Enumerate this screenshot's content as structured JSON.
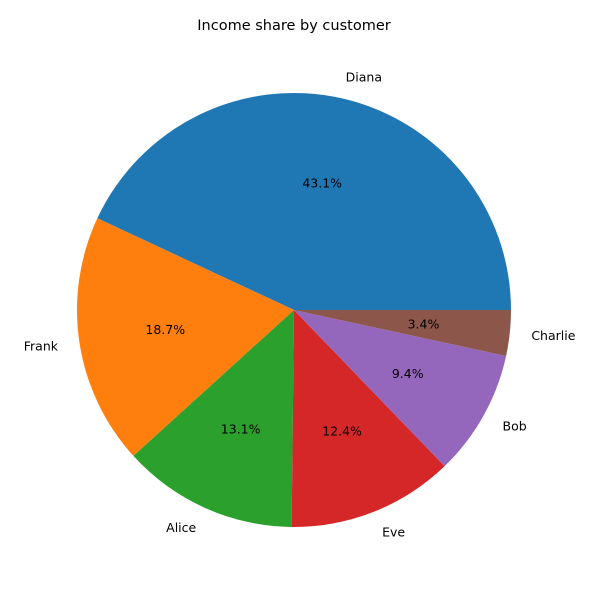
{
  "chart_data": {
    "type": "pie",
    "title": "Income share by customer",
    "slices": [
      {
        "label": "Diana",
        "value": 43.1,
        "pct_text": "43.1%",
        "color": "#1f77b4"
      },
      {
        "label": "Frank",
        "value": 18.7,
        "pct_text": "18.7%",
        "color": "#ff7f0e"
      },
      {
        "label": "Alice",
        "value": 13.1,
        "pct_text": "13.1%",
        "color": "#2ca02c"
      },
      {
        "label": "Eve",
        "value": 12.4,
        "pct_text": "12.4%",
        "color": "#d62728"
      },
      {
        "label": "Bob",
        "value": 9.4,
        "pct_text": "9.4%",
        "color": "#9467bd"
      },
      {
        "label": "Charlie",
        "value": 3.4,
        "pct_text": "3.4%",
        "color": "#8c564b"
      }
    ],
    "start_angle_deg": 0,
    "direction": "counterclockwise",
    "legend": "none"
  }
}
